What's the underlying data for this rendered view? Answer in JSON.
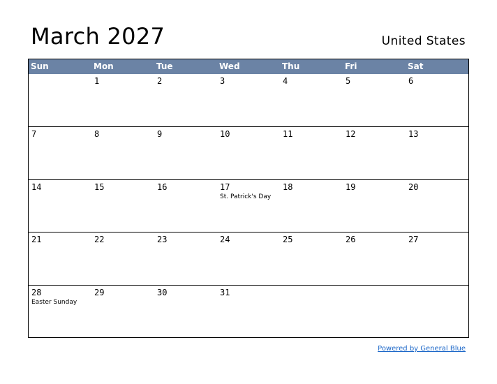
{
  "title": "March 2027",
  "country": "United States",
  "weekdays": [
    "Sun",
    "Mon",
    "Tue",
    "Wed",
    "Thu",
    "Fri",
    "Sat"
  ],
  "weeks": [
    [
      {
        "day": "",
        "holiday": ""
      },
      {
        "day": "1",
        "holiday": ""
      },
      {
        "day": "2",
        "holiday": ""
      },
      {
        "day": "3",
        "holiday": ""
      },
      {
        "day": "4",
        "holiday": ""
      },
      {
        "day": "5",
        "holiday": ""
      },
      {
        "day": "6",
        "holiday": ""
      }
    ],
    [
      {
        "day": "7",
        "holiday": ""
      },
      {
        "day": "8",
        "holiday": ""
      },
      {
        "day": "9",
        "holiday": ""
      },
      {
        "day": "10",
        "holiday": ""
      },
      {
        "day": "11",
        "holiday": ""
      },
      {
        "day": "12",
        "holiday": ""
      },
      {
        "day": "13",
        "holiday": ""
      }
    ],
    [
      {
        "day": "14",
        "holiday": ""
      },
      {
        "day": "15",
        "holiday": ""
      },
      {
        "day": "16",
        "holiday": ""
      },
      {
        "day": "17",
        "holiday": "St. Patrick's Day"
      },
      {
        "day": "18",
        "holiday": ""
      },
      {
        "day": "19",
        "holiday": ""
      },
      {
        "day": "20",
        "holiday": ""
      }
    ],
    [
      {
        "day": "21",
        "holiday": ""
      },
      {
        "day": "22",
        "holiday": ""
      },
      {
        "day": "23",
        "holiday": ""
      },
      {
        "day": "24",
        "holiday": ""
      },
      {
        "day": "25",
        "holiday": ""
      },
      {
        "day": "26",
        "holiday": ""
      },
      {
        "day": "27",
        "holiday": ""
      }
    ],
    [
      {
        "day": "28",
        "holiday": "Easter Sunday"
      },
      {
        "day": "29",
        "holiday": ""
      },
      {
        "day": "30",
        "holiday": ""
      },
      {
        "day": "31",
        "holiday": ""
      },
      {
        "day": "",
        "holiday": ""
      },
      {
        "day": "",
        "holiday": ""
      },
      {
        "day": "",
        "holiday": ""
      }
    ]
  ],
  "footer": {
    "link_text": "Powered by General Blue"
  },
  "colors": {
    "header_bg": "#6b83a5",
    "link": "#1a66c8"
  }
}
